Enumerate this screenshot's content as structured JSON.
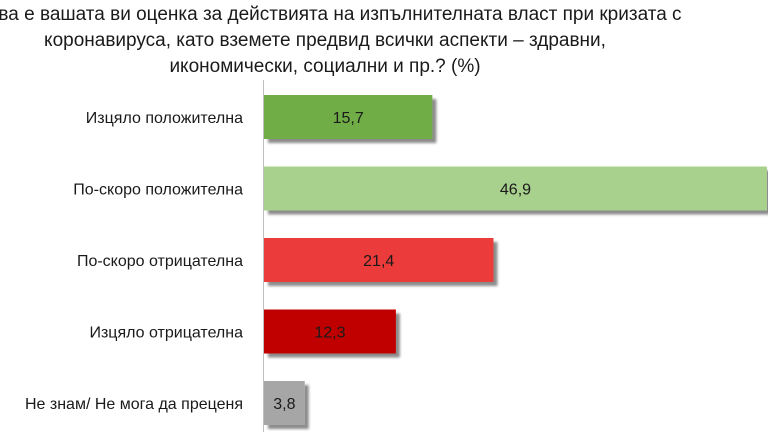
{
  "chart_data": {
    "type": "bar",
    "orientation": "horizontal",
    "title_lines": [
      "Каква е вашата ви оценка за действията на изпълнителната власт при кризата с",
      "коронавируса,  като вземете предвид всички аспекти – здравни,",
      "икономически,  социални и пр.? (%)"
    ],
    "categories": [
      "Изцяло положителна",
      "По-скоро положителна",
      "По-скоро отрицателна",
      "Изцяло отрицателна",
      "Не знам/ Не мога да преценя"
    ],
    "values": [
      15.7,
      46.9,
      21.4,
      12.3,
      3.8
    ],
    "value_labels": [
      "15,7",
      "46,9",
      "21,4",
      "12,3",
      "3,8"
    ],
    "bar_colors": [
      "#70ad47",
      "#a9d18e",
      "#ec3b3b",
      "#c00000",
      "#a6a6a6"
    ],
    "xlim": [
      0,
      47
    ],
    "grid": false,
    "legend": "none"
  }
}
